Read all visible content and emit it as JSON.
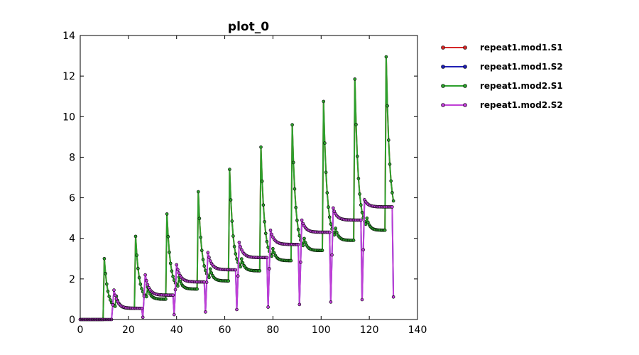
{
  "chart_data": {
    "type": "line",
    "title": "plot_0",
    "xlabel": "",
    "ylabel": "",
    "xlim": [
      0,
      140
    ],
    "ylim": [
      0,
      14
    ],
    "xticks": [
      "0",
      "20",
      "40",
      "60",
      "80",
      "100",
      "120",
      "140"
    ],
    "yticks": [
      "0",
      "2",
      "4",
      "6",
      "8",
      "10",
      "12",
      "14"
    ],
    "grid": false,
    "legend_position": "outside-right",
    "series": [
      {
        "name": "repeat1.mod1.S1",
        "color": "#d62728"
      },
      {
        "name": "repeat1.mod1.S2",
        "color": "#1f1fb4"
      },
      {
        "name": "repeat1.mod2.S1",
        "color": "#2ca02c"
      },
      {
        "name": "repeat1.mod2.S2",
        "color": "#bf3fd6"
      }
    ],
    "s1_pulses": [
      {
        "t": 10,
        "peak": 3.0,
        "base": 0.55,
        "s2": 1.45
      },
      {
        "t": 23,
        "peak": 4.1,
        "base": 1.0,
        "s2": 2.2
      },
      {
        "t": 36,
        "peak": 5.2,
        "base": 1.5,
        "s2": 2.7
      },
      {
        "t": 49,
        "peak": 6.3,
        "base": 1.9,
        "s2": 3.3
      },
      {
        "t": 62,
        "peak": 7.4,
        "base": 2.4,
        "s2": 3.8
      },
      {
        "t": 75,
        "peak": 8.5,
        "base": 2.9,
        "s2": 4.4
      },
      {
        "t": 88,
        "peak": 9.6,
        "base": 3.4,
        "s2": 4.9
      },
      {
        "t": 101,
        "peak": 10.75,
        "base": 3.9,
        "s2": 5.5
      },
      {
        "t": 114,
        "peak": 11.85,
        "base": 4.4,
        "s2": 5.9
      },
      {
        "t": 127,
        "peak": 12.95,
        "base": 4.9,
        "s2": 6.6
      }
    ],
    "s2_steps": [
      {
        "t": 13,
        "level": 0.55
      },
      {
        "t": 26,
        "level": 1.2
      },
      {
        "t": 39,
        "level": 1.85
      },
      {
        "t": 52,
        "level": 2.45
      },
      {
        "t": 65,
        "level": 3.05
      },
      {
        "t": 78,
        "level": 3.7
      },
      {
        "t": 91,
        "level": 4.3
      },
      {
        "t": 104,
        "level": 4.9
      },
      {
        "t": 117,
        "level": 5.55
      },
      {
        "t": 130,
        "level": 6.2
      }
    ]
  }
}
